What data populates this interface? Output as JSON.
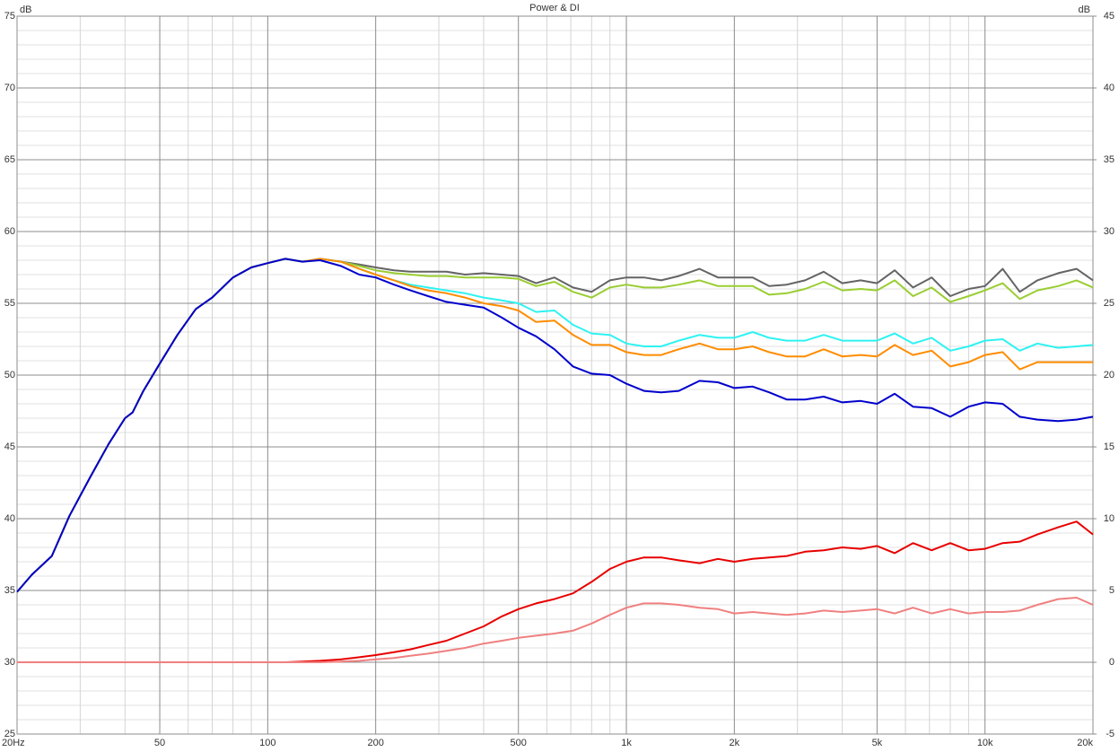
{
  "chart_data": {
    "type": "line",
    "title": "Power & DI",
    "ylabel": "dB",
    "y2label": "dB",
    "xscale": "log",
    "grid": true,
    "x": [
      20,
      22,
      25,
      28,
      32,
      36,
      40,
      42,
      45,
      50,
      56,
      63,
      70,
      80,
      90,
      100,
      112,
      125,
      140,
      160,
      180,
      200,
      225,
      250,
      280,
      315,
      355,
      400,
      450,
      500,
      560,
      630,
      710,
      800,
      900,
      1000,
      1120,
      1250,
      1400,
      1600,
      1800,
      2000,
      2250,
      2500,
      2800,
      3150,
      3550,
      4000,
      4500,
      5000,
      5600,
      6300,
      7100,
      8000,
      9000,
      10000,
      11200,
      12500,
      14000,
      16000,
      18000,
      20000
    ],
    "xlim": [
      20,
      20000
    ],
    "xticks": [
      {
        "value": 20,
        "label": "20Hz"
      },
      50,
      100,
      200,
      500,
      {
        "value": 1000,
        "label": "1k"
      },
      {
        "value": 2000,
        "label": "2k"
      },
      {
        "value": 5000,
        "label": "5k"
      },
      {
        "value": 10000,
        "label": "10k"
      },
      {
        "value": 20000,
        "label": "20k"
      }
    ],
    "xminorticks": [
      30,
      40,
      60,
      70,
      80,
      90,
      300,
      400,
      600,
      700,
      800,
      900,
      3000,
      4000,
      6000,
      7000,
      8000,
      9000
    ],
    "ylim": [
      25,
      75
    ],
    "yticks": [
      25,
      30,
      35,
      40,
      45,
      50,
      55,
      60,
      65,
      70,
      75
    ],
    "yminorticks": [
      26,
      27,
      28,
      29,
      31,
      32,
      33,
      34,
      36,
      37,
      38,
      39,
      41,
      42,
      43,
      44,
      46,
      47,
      48,
      49,
      51,
      52,
      53,
      54,
      56,
      57,
      58,
      59,
      61,
      62,
      63,
      64,
      66,
      67,
      68,
      69,
      71,
      72,
      73,
      74
    ],
    "y2lim": [
      -5,
      45
    ],
    "y2ticks": [
      -5,
      0,
      5,
      10,
      15,
      20,
      25,
      30,
      35,
      40,
      45
    ],
    "series": [
      {
        "color": "#646464",
        "values": [
          34.9,
          36.1,
          37.4,
          40.2,
          42.9,
          45.2,
          47.0,
          47.4,
          48.9,
          50.8,
          52.8,
          54.6,
          55.4,
          56.8,
          57.5,
          57.8,
          58.1,
          57.9,
          58.1,
          57.9,
          57.7,
          57.5,
          57.3,
          57.2,
          57.2,
          57.2,
          57.0,
          57.1,
          57.0,
          56.9,
          56.4,
          56.8,
          56.1,
          55.8,
          56.6,
          56.8,
          56.8,
          56.6,
          56.9,
          57.4,
          56.8,
          56.8,
          56.8,
          56.2,
          56.3,
          56.6,
          57.2,
          56.4,
          56.6,
          56.4,
          57.3,
          56.1,
          56.8,
          55.5,
          56.0,
          56.2,
          57.4,
          55.8,
          56.6,
          57.1,
          57.4,
          56.6
        ]
      },
      {
        "color": "#9acd32",
        "values": [
          34.9,
          36.1,
          37.4,
          40.2,
          42.9,
          45.2,
          47.0,
          47.4,
          48.9,
          50.8,
          52.8,
          54.6,
          55.4,
          56.8,
          57.5,
          57.8,
          58.1,
          57.9,
          58.1,
          57.9,
          57.6,
          57.3,
          57.1,
          57.0,
          56.9,
          56.9,
          56.8,
          56.8,
          56.8,
          56.7,
          56.2,
          56.5,
          55.8,
          55.4,
          56.1,
          56.3,
          56.1,
          56.1,
          56.3,
          56.6,
          56.2,
          56.2,
          56.2,
          55.6,
          55.7,
          56.0,
          56.5,
          55.9,
          56.0,
          55.9,
          56.6,
          55.5,
          56.1,
          55.1,
          55.5,
          55.9,
          56.4,
          55.3,
          55.9,
          56.2,
          56.6,
          56.1
        ]
      },
      {
        "color": "#2ef2f2",
        "values": [
          34.9,
          36.1,
          37.4,
          40.2,
          42.9,
          45.2,
          47.0,
          47.4,
          48.9,
          50.8,
          52.8,
          54.6,
          55.4,
          56.8,
          57.5,
          57.8,
          58.1,
          57.9,
          58.1,
          57.9,
          57.4,
          57.0,
          56.6,
          56.3,
          56.1,
          55.9,
          55.7,
          55.4,
          55.2,
          55.0,
          54.4,
          54.5,
          53.5,
          52.9,
          52.8,
          52.2,
          52.0,
          52.0,
          52.4,
          52.8,
          52.6,
          52.6,
          53.0,
          52.6,
          52.4,
          52.4,
          52.8,
          52.4,
          52.4,
          52.4,
          52.9,
          52.2,
          52.6,
          51.7,
          52.0,
          52.4,
          52.5,
          51.7,
          52.2,
          51.9,
          52.0,
          52.1
        ]
      },
      {
        "color": "#ff8c00",
        "values": [
          34.9,
          36.1,
          37.4,
          40.2,
          42.9,
          45.2,
          47.0,
          47.4,
          48.9,
          50.8,
          52.8,
          54.6,
          55.4,
          56.8,
          57.5,
          57.8,
          58.1,
          57.9,
          58.1,
          57.9,
          57.4,
          57.0,
          56.6,
          56.2,
          55.9,
          55.7,
          55.4,
          55.0,
          54.8,
          54.5,
          53.7,
          53.8,
          52.8,
          52.1,
          52.1,
          51.6,
          51.4,
          51.4,
          51.8,
          52.2,
          51.8,
          51.8,
          52.0,
          51.6,
          51.3,
          51.3,
          51.8,
          51.3,
          51.4,
          51.3,
          52.1,
          51.4,
          51.7,
          50.6,
          50.9,
          51.4,
          51.6,
          50.4,
          50.9,
          50.9,
          50.9,
          50.9
        ]
      },
      {
        "color": "#0000cd",
        "values": [
          34.9,
          36.1,
          37.4,
          40.2,
          42.9,
          45.2,
          47.0,
          47.4,
          48.9,
          50.8,
          52.8,
          54.6,
          55.4,
          56.8,
          57.5,
          57.8,
          58.1,
          57.9,
          58.0,
          57.6,
          57.0,
          56.8,
          56.3,
          55.9,
          55.5,
          55.1,
          54.9,
          54.7,
          54.0,
          53.3,
          52.7,
          51.8,
          50.6,
          50.1,
          50.0,
          49.4,
          48.9,
          48.8,
          48.9,
          49.6,
          49.5,
          49.1,
          49.2,
          48.8,
          48.3,
          48.3,
          48.5,
          48.1,
          48.2,
          48.0,
          48.7,
          47.8,
          47.7,
          47.1,
          47.8,
          48.1,
          48.0,
          47.1,
          46.9,
          46.8,
          46.9,
          47.1
        ]
      },
      {
        "color": "#e80000",
        "axis": "y2",
        "values": [
          0,
          0,
          0,
          0,
          0,
          0,
          0,
          0,
          0,
          0,
          0,
          0,
          0,
          0,
          0,
          0,
          0,
          0.05,
          0.1,
          0.2,
          0.35,
          0.5,
          0.7,
          0.9,
          1.2,
          1.5,
          2.0,
          2.5,
          3.2,
          3.7,
          4.1,
          4.4,
          4.8,
          5.6,
          6.5,
          7.0,
          7.3,
          7.3,
          7.1,
          6.9,
          7.2,
          7.0,
          7.2,
          7.3,
          7.4,
          7.7,
          7.8,
          8.0,
          7.9,
          8.1,
          7.6,
          8.3,
          7.8,
          8.3,
          7.8,
          7.9,
          8.3,
          8.4,
          8.9,
          9.4,
          9.8,
          8.9
        ]
      },
      {
        "color": "#f08080",
        "axis": "y2",
        "values": [
          0,
          0,
          0,
          0,
          0,
          0,
          0,
          0,
          0,
          0,
          0,
          0,
          0,
          0,
          0,
          0,
          0,
          0,
          0,
          0.05,
          0.1,
          0.2,
          0.3,
          0.45,
          0.6,
          0.8,
          1.0,
          1.3,
          1.5,
          1.7,
          1.85,
          2.0,
          2.2,
          2.7,
          3.3,
          3.8,
          4.1,
          4.1,
          4.0,
          3.8,
          3.7,
          3.4,
          3.5,
          3.4,
          3.3,
          3.4,
          3.6,
          3.5,
          3.6,
          3.7,
          3.4,
          3.8,
          3.4,
          3.7,
          3.4,
          3.5,
          3.5,
          3.6,
          4.0,
          4.4,
          4.5,
          4.0
        ]
      }
    ]
  }
}
